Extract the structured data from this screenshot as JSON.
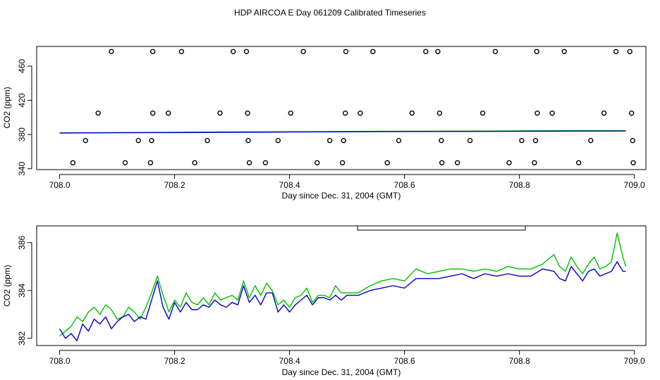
{
  "figure": {
    "title": "HDP AIRCOA E  Day 061209  Calibrated Timeseries"
  },
  "colors": {
    "axis": "#000000",
    "series_green": "#00c000",
    "series_blue": "#0000c8"
  },
  "chart_data": [
    {
      "type": "scatter",
      "title": "",
      "xlabel": "Day since Dec. 31, 2004 (GMT)",
      "ylabel": "CO2 (ppm)",
      "xlim": [
        707.96,
        709.02
      ],
      "ylim": [
        339,
        483
      ],
      "xticks": [
        708.0,
        708.2,
        708.4,
        708.6,
        708.8,
        709.0
      ],
      "xtick_labels": [
        "708.0",
        "708.2",
        "708.4",
        "708.6",
        "708.8",
        "709.0"
      ],
      "yticks": [
        340,
        380,
        420,
        460
      ],
      "ytick_labels": [
        "340",
        "380",
        "420",
        "460"
      ],
      "grid": false,
      "points": {
        "marker": "open-circle",
        "levels": {
          "477": [
            708.09,
            708.162,
            708.212,
            708.302,
            708.325,
            708.424,
            708.498,
            708.545,
            708.637,
            708.658,
            708.758,
            708.83,
            708.878,
            708.968,
            708.992
          ],
          "405": [
            708.067,
            708.162,
            708.189,
            708.279,
            708.327,
            708.402,
            708.497,
            708.523,
            708.613,
            708.661,
            708.736,
            708.831,
            708.857,
            708.947,
            708.995
          ],
          "373": [
            708.045,
            708.137,
            708.16,
            708.257,
            708.328,
            708.38,
            708.47,
            708.494,
            708.59,
            708.664,
            708.714,
            708.804,
            708.828,
            708.924,
            708.997
          ],
          "347": [
            708.023,
            708.114,
            708.158,
            708.235,
            708.33,
            708.358,
            708.448,
            708.492,
            708.57,
            708.665,
            708.692,
            708.782,
            708.826,
            708.903,
            708.998
          ]
        }
      },
      "series": [
        {
          "color": "green",
          "x": [
            708.0,
            708.1,
            708.2,
            708.3,
            708.4,
            708.5,
            708.6,
            708.7,
            708.8,
            708.9,
            708.985
          ],
          "values": [
            381.8,
            382.2,
            382.6,
            383.0,
            383.3,
            383.6,
            383.9,
            384.0,
            384.3,
            384.6,
            384.5
          ]
        },
        {
          "color": "blue",
          "x": [
            708.0,
            708.1,
            708.2,
            708.3,
            708.4,
            708.5,
            708.6,
            708.7,
            708.8,
            708.9,
            708.985
          ],
          "values": [
            381.9,
            382.1,
            382.3,
            382.6,
            382.9,
            383.2,
            383.5,
            383.6,
            383.8,
            384.0,
            384.1
          ]
        }
      ]
    },
    {
      "type": "line",
      "title": "",
      "xlabel": "Day since Dec. 31, 2004 (GMT)",
      "ylabel": "CO2 (ppm)",
      "xlim": [
        707.96,
        709.02
      ],
      "ylim": [
        381.7,
        386.7
      ],
      "xticks": [
        708.0,
        708.2,
        708.4,
        708.6,
        708.8,
        709.0
      ],
      "xtick_labels": [
        "708.0",
        "708.2",
        "708.4",
        "708.6",
        "708.8",
        "709.0"
      ],
      "yticks": [
        382,
        384,
        386
      ],
      "ytick_labels": [
        "382",
        "384",
        "386"
      ],
      "grid": false,
      "legend": {
        "placement": "top-center",
        "entries": []
      },
      "series": [
        {
          "color": "green",
          "x": [
            708.0,
            708.01,
            708.02,
            708.03,
            708.04,
            708.05,
            708.06,
            708.07,
            708.08,
            708.09,
            708.1,
            708.11,
            708.12,
            708.13,
            708.14,
            708.15,
            708.16,
            708.17,
            708.18,
            708.19,
            708.2,
            708.21,
            708.22,
            708.23,
            708.24,
            708.25,
            708.26,
            708.27,
            708.28,
            708.29,
            708.3,
            708.31,
            708.32,
            708.33,
            708.34,
            708.35,
            708.36,
            708.37,
            708.38,
            708.39,
            708.4,
            708.41,
            708.42,
            708.43,
            708.44,
            708.45,
            708.46,
            708.47,
            708.48,
            708.49,
            708.5,
            708.52,
            708.54,
            708.56,
            708.58,
            708.6,
            708.62,
            708.64,
            708.66,
            708.68,
            708.7,
            708.72,
            708.74,
            708.76,
            708.78,
            708.8,
            708.82,
            708.84,
            708.86,
            708.87,
            708.88,
            708.89,
            708.9,
            708.91,
            708.92,
            708.93,
            708.94,
            708.95,
            708.96,
            708.97,
            708.98,
            708.985
          ],
          "values": [
            382.1,
            382.3,
            382.5,
            382.9,
            382.7,
            383.1,
            383.3,
            383.0,
            383.4,
            383.2,
            382.8,
            382.9,
            383.3,
            383.1,
            382.8,
            383.3,
            383.9,
            384.6,
            383.8,
            383.1,
            383.6,
            383.3,
            383.9,
            383.5,
            383.4,
            383.7,
            383.4,
            383.9,
            383.6,
            383.7,
            383.8,
            383.6,
            384.4,
            383.7,
            384.2,
            383.8,
            384.3,
            384.0,
            383.4,
            383.6,
            383.3,
            383.7,
            383.8,
            384.1,
            383.5,
            383.8,
            383.8,
            383.7,
            384.2,
            383.9,
            383.9,
            383.9,
            384.2,
            384.4,
            384.5,
            384.4,
            384.9,
            384.7,
            384.8,
            384.9,
            384.9,
            384.8,
            384.9,
            384.8,
            385.0,
            384.9,
            384.9,
            385.1,
            385.5,
            385.0,
            384.8,
            385.4,
            385.0,
            384.7,
            385.1,
            385.4,
            384.9,
            385.0,
            385.2,
            386.4,
            385.4,
            385.0
          ]
        },
        {
          "color": "blue",
          "x": [
            708.0,
            708.01,
            708.02,
            708.03,
            708.04,
            708.05,
            708.06,
            708.07,
            708.08,
            708.09,
            708.1,
            708.11,
            708.12,
            708.13,
            708.14,
            708.15,
            708.16,
            708.17,
            708.18,
            708.19,
            708.2,
            708.21,
            708.22,
            708.23,
            708.24,
            708.25,
            708.26,
            708.27,
            708.28,
            708.29,
            708.3,
            708.31,
            708.32,
            708.33,
            708.34,
            708.35,
            708.36,
            708.37,
            708.38,
            708.39,
            708.4,
            708.41,
            708.42,
            708.43,
            708.44,
            708.45,
            708.46,
            708.47,
            708.48,
            708.49,
            708.5,
            708.52,
            708.54,
            708.56,
            708.58,
            708.6,
            708.62,
            708.64,
            708.66,
            708.68,
            708.7,
            708.72,
            708.74,
            708.76,
            708.78,
            708.8,
            708.82,
            708.84,
            708.86,
            708.87,
            708.88,
            708.89,
            708.9,
            708.91,
            708.92,
            708.93,
            708.94,
            708.95,
            708.96,
            708.97,
            708.98,
            708.985
          ],
          "values": [
            382.4,
            382.0,
            382.2,
            381.9,
            382.6,
            382.3,
            382.8,
            382.6,
            382.9,
            382.4,
            382.7,
            382.9,
            383.0,
            382.7,
            382.9,
            382.8,
            383.6,
            384.4,
            383.3,
            382.8,
            383.5,
            383.1,
            383.5,
            383.2,
            383.2,
            383.4,
            383.3,
            383.6,
            383.4,
            383.3,
            383.5,
            383.4,
            384.2,
            383.5,
            383.8,
            383.4,
            383.9,
            383.9,
            383.1,
            383.4,
            383.1,
            383.4,
            383.6,
            383.8,
            383.4,
            383.7,
            383.7,
            383.6,
            383.8,
            383.6,
            383.8,
            383.8,
            384.0,
            384.1,
            384.2,
            384.1,
            384.5,
            384.5,
            384.5,
            384.6,
            384.7,
            384.5,
            384.7,
            384.6,
            384.7,
            384.6,
            384.6,
            384.9,
            384.8,
            384.5,
            384.4,
            385.0,
            384.7,
            384.4,
            384.8,
            384.9,
            384.6,
            384.7,
            384.8,
            385.2,
            384.8,
            384.8
          ]
        }
      ]
    }
  ]
}
